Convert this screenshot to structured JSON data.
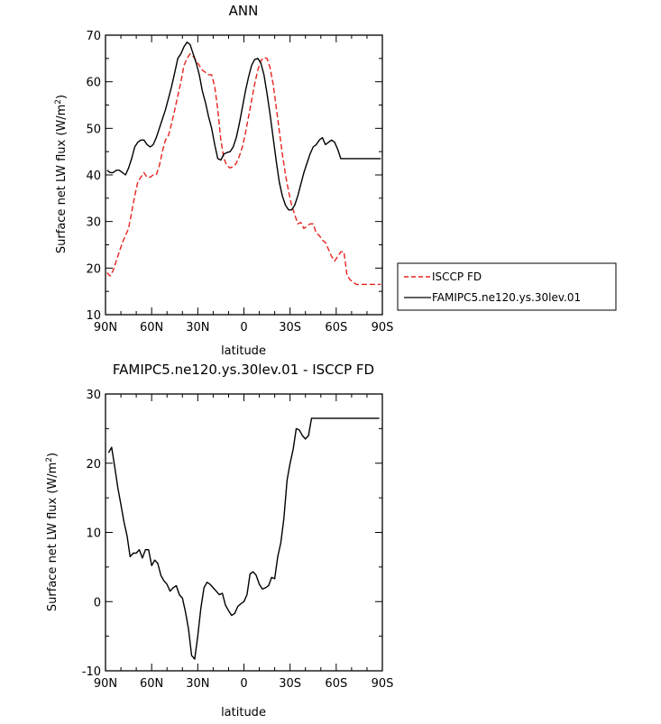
{
  "chart_data": [
    {
      "type": "line",
      "title": "ANN",
      "xlabel": "latitude",
      "ylabel": "Surface net LW flux (W/m",
      "ylabel_sup": "2",
      "ylabel_close": ")",
      "xlim": [
        90,
        -90
      ],
      "ylim": [
        10,
        70
      ],
      "xtick_labels": [
        "90N",
        "60N",
        "30N",
        "0",
        "30S",
        "60S",
        "90S"
      ],
      "ytick_labels": [
        "10",
        "20",
        "30",
        "40",
        "50",
        "60",
        "70"
      ],
      "legend_position": "right",
      "series": [
        {
          "name": "ISCCP FD",
          "color": "#e8231f",
          "dash": "dashed",
          "x": [
            89,
            87,
            85,
            83,
            81,
            79,
            77,
            75,
            73,
            71,
            69,
            67,
            65,
            63,
            61,
            59,
            57,
            55,
            53,
            51,
            49,
            47,
            45,
            43,
            41,
            39,
            37,
            35,
            33,
            31,
            29,
            27,
            25,
            23,
            21,
            19,
            17,
            15,
            13,
            11,
            9,
            7,
            5,
            3,
            1,
            -1,
            -3,
            -5,
            -7,
            -9,
            -11,
            -13,
            -15,
            -17,
            -19,
            -21,
            -23,
            -25,
            -27,
            -29,
            -31,
            -33,
            -35,
            -37,
            -39,
            -41,
            -43,
            -45,
            -47,
            -49,
            -51,
            -53,
            -55,
            -57,
            -59,
            -61,
            -63,
            -65,
            -67,
            -69,
            -71,
            -73,
            -75,
            -77,
            -79,
            -81,
            -83,
            -85,
            -87,
            -89
          ],
          "values": [
            19.0,
            18.3,
            19.5,
            21.5,
            23.5,
            25.5,
            27.0,
            28.5,
            32.0,
            35.5,
            38.5,
            39.5,
            40.5,
            39.5,
            39.5,
            40.0,
            40.0,
            42.0,
            45.0,
            47.5,
            48.5,
            51.0,
            54.0,
            57.0,
            60.0,
            63.5,
            65.0,
            66.0,
            65.5,
            64.5,
            63.5,
            62.5,
            62.0,
            61.5,
            61.5,
            59.0,
            54.0,
            47.5,
            43.5,
            42.0,
            41.5,
            41.8,
            42.5,
            44.0,
            46.0,
            49.0,
            52.5,
            56.0,
            59.5,
            62.5,
            64.5,
            65.2,
            65.0,
            63.0,
            59.5,
            54.5,
            49.5,
            44.5,
            40.0,
            36.5,
            33.5,
            31.5,
            29.5,
            29.8,
            28.5,
            29.0,
            29.5,
            29.5,
            27.5,
            27.0,
            26.0,
            25.5,
            24.0,
            22.5,
            21.5,
            22.5,
            23.5,
            23.5,
            18.5,
            17.5,
            17.0,
            16.5,
            16.5,
            16.5,
            16.5,
            16.5,
            16.5,
            16.5,
            16.5,
            16.5
          ]
        },
        {
          "name": "FAMIPC5.ne120.ys.30lev.01",
          "color": "#000000",
          "dash": "solid",
          "x": [
            89,
            87,
            85,
            83,
            81,
            79,
            77,
            75,
            73,
            71,
            69,
            67,
            65,
            63,
            61,
            59,
            57,
            55,
            53,
            51,
            49,
            47,
            45,
            43,
            41,
            39,
            37,
            35,
            33,
            31,
            29,
            27,
            25,
            23,
            21,
            19,
            17,
            15,
            13,
            11,
            9,
            7,
            5,
            3,
            1,
            -1,
            -3,
            -5,
            -7,
            -9,
            -11,
            -13,
            -15,
            -17,
            -19,
            -21,
            -23,
            -25,
            -27,
            -29,
            -31,
            -33,
            -35,
            -37,
            -39,
            -41,
            -43,
            -45,
            -47,
            -49,
            -51,
            -53,
            -55,
            -57,
            -59,
            -61,
            -63,
            -65,
            -67,
            -69,
            -71,
            -73,
            -75,
            -77,
            -79,
            -81,
            -83,
            -85,
            -87,
            -89
          ],
          "values": [
            41.0,
            40.5,
            40.5,
            41.0,
            41.0,
            40.5,
            40.0,
            41.5,
            43.5,
            46.0,
            47.0,
            47.5,
            47.5,
            46.5,
            46.0,
            46.5,
            48.0,
            50.0,
            52.0,
            54.0,
            56.5,
            59.0,
            62.0,
            65.0,
            66.0,
            67.5,
            68.5,
            68.0,
            66.0,
            64.0,
            61.5,
            58.0,
            55.5,
            52.5,
            50.0,
            46.5,
            43.5,
            43.2,
            44.5,
            44.8,
            45.0,
            46.0,
            48.0,
            51.0,
            54.5,
            58.0,
            61.0,
            63.5,
            64.8,
            65.0,
            64.0,
            61.5,
            57.5,
            53.0,
            48.0,
            43.0,
            38.5,
            35.5,
            33.5,
            32.5,
            32.5,
            33.5,
            35.5,
            38.0,
            40.5,
            42.5,
            44.5,
            46.0,
            46.5,
            47.5,
            48.0,
            46.5,
            47.0,
            47.5,
            47.0,
            45.5,
            43.5,
            43.5,
            43.5,
            43.5,
            43.5,
            43.5,
            43.5,
            43.5,
            43.5,
            43.5,
            43.5,
            43.5,
            43.5,
            43.5
          ]
        }
      ]
    },
    {
      "type": "line",
      "title": "FAMIPC5.ne120.ys.30lev.01 - ISCCP FD",
      "xlabel": "latitude",
      "ylabel": "Surface net LW flux (W/m",
      "ylabel_sup": "2",
      "ylabel_close": ")",
      "xlim": [
        90,
        -90
      ],
      "ylim": [
        -10,
        30
      ],
      "xtick_labels": [
        "90N",
        "60N",
        "30N",
        "0",
        "30S",
        "60S",
        "90S"
      ],
      "ytick_labels": [
        "-10",
        "0",
        "10",
        "20",
        "30"
      ],
      "series": [
        {
          "color": "#000000",
          "dash": "solid",
          "x": [
            88,
            86,
            84,
            82,
            80,
            78,
            76,
            74,
            72,
            70,
            68,
            66,
            64,
            62,
            60,
            58,
            56,
            54,
            52,
            50,
            48,
            46,
            44,
            42,
            40,
            38,
            36,
            34,
            32,
            30,
            28,
            26,
            24,
            22,
            20,
            18,
            16,
            14,
            12,
            10,
            8,
            6,
            4,
            2,
            0,
            -2,
            -4,
            -6,
            -8,
            -10,
            -12,
            -14,
            -16,
            -18,
            -20,
            -22,
            -24,
            -26,
            -28,
            -30,
            -32,
            -34,
            -36,
            -38,
            -40,
            -42,
            -44,
            -46,
            -48,
            -50,
            -52,
            -54,
            -56,
            -58,
            -60,
            -62,
            -64,
            -66,
            -68,
            -70,
            -72,
            -74,
            -76,
            -78,
            -80,
            -82,
            -84,
            -86,
            -88
          ],
          "values": [
            21.5,
            22.3,
            19.5,
            16.5,
            14.0,
            11.5,
            9.5,
            6.5,
            7.0,
            7.0,
            7.5,
            6.3,
            7.5,
            7.5,
            5.2,
            6.0,
            5.5,
            3.8,
            3.0,
            2.5,
            1.5,
            2.0,
            2.3,
            1.0,
            0.5,
            -1.5,
            -4.0,
            -7.8,
            -8.3,
            -5.0,
            -1.0,
            2.0,
            2.8,
            2.5,
            2.0,
            1.5,
            1.0,
            1.2,
            -0.5,
            -1.3,
            -2.0,
            -1.7,
            -0.7,
            -0.3,
            0.0,
            1.0,
            4.0,
            4.3,
            3.8,
            2.5,
            1.8,
            2.0,
            2.3,
            3.5,
            3.3,
            6.5,
            8.5,
            12.0,
            17.5,
            20.0,
            22.0,
            25.0,
            24.8,
            24.0,
            23.5,
            24.0,
            26.5,
            26.5,
            26.5,
            26.5,
            26.5,
            26.5,
            26.5,
            26.5,
            26.5,
            26.5,
            26.5,
            26.5,
            26.5,
            26.5,
            26.5,
            26.5,
            26.5,
            26.5,
            26.5,
            26.5,
            26.5,
            26.5,
            26.5
          ]
        }
      ]
    }
  ]
}
